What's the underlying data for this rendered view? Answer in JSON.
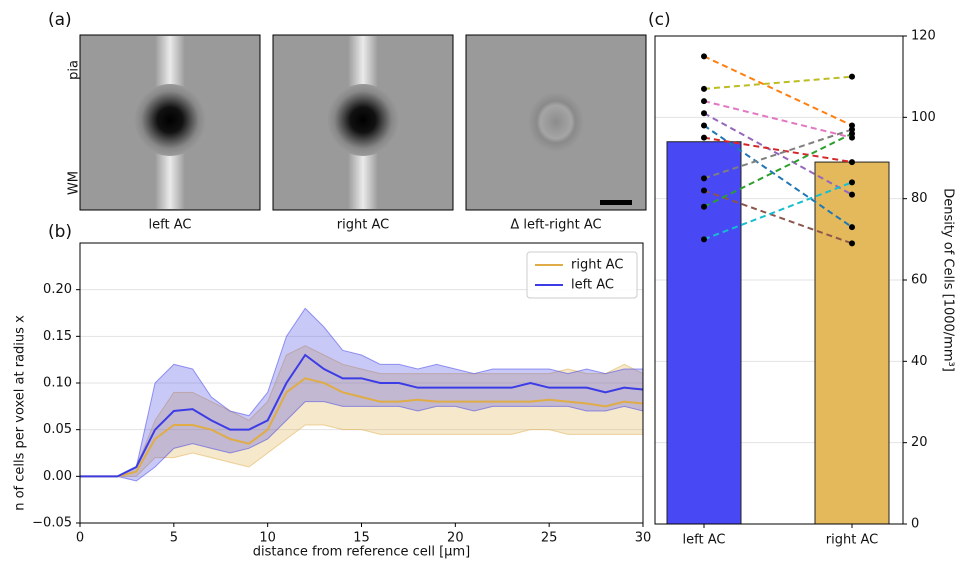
{
  "panel_a": {
    "panel_label": "(a)",
    "side_labels": [
      "pia",
      "WM"
    ],
    "image_labels": [
      "left AC",
      "right AC",
      "Δ left-right AC"
    ]
  },
  "chart_data": [
    {
      "type": "line",
      "panel_label": "(b)",
      "x_label": "distance from reference cell [μm]",
      "y_label": "n of cells per voxel at radius x",
      "x": [
        0,
        1,
        2,
        3,
        4,
        5,
        6,
        7,
        8,
        9,
        10,
        11,
        12,
        13,
        14,
        15,
        16,
        17,
        18,
        19,
        20,
        21,
        22,
        23,
        24,
        25,
        26,
        27,
        28,
        29,
        30
      ],
      "xlim": [
        0,
        30
      ],
      "xticks": [
        0,
        5,
        10,
        15,
        20,
        25,
        30
      ],
      "ylim": [
        -0.05,
        0.25
      ],
      "yticks": [
        {
          "value": -0.05,
          "label": "−0.05"
        },
        {
          "value": 0,
          "label": "0.00"
        },
        {
          "value": 0.05,
          "label": "0.05"
        },
        {
          "value": 0.1,
          "label": "0.10"
        },
        {
          "value": 0.15,
          "label": "0.15"
        },
        {
          "value": 0.2,
          "label": "0.20"
        }
      ],
      "grid": true,
      "legend": "upper right",
      "series": [
        {
          "name": "right AC",
          "color": "#e0ac45",
          "values": [
            0,
            0,
            0,
            0.005,
            0.04,
            0.055,
            0.055,
            0.05,
            0.04,
            0.035,
            0.05,
            0.09,
            0.105,
            0.1,
            0.09,
            0.085,
            0.08,
            0.08,
            0.082,
            0.08,
            0.08,
            0.08,
            0.08,
            0.08,
            0.08,
            0.082,
            0.08,
            0.078,
            0.075,
            0.08,
            0.078
          ],
          "lower": [
            0,
            0,
            0,
            0,
            0.02,
            0.02,
            0.025,
            0.02,
            0.015,
            0.01,
            0.025,
            0.04,
            0.055,
            0.055,
            0.05,
            0.05,
            0.045,
            0.045,
            0.045,
            0.045,
            0.045,
            0.045,
            0.045,
            0.045,
            0.05,
            0.05,
            0.045,
            0.045,
            0.045,
            0.045,
            0.045
          ],
          "upper": [
            0,
            0,
            0,
            0.01,
            0.06,
            0.09,
            0.09,
            0.08,
            0.07,
            0.06,
            0.08,
            0.13,
            0.14,
            0.13,
            0.12,
            0.115,
            0.11,
            0.11,
            0.11,
            0.11,
            0.11,
            0.11,
            0.11,
            0.11,
            0.11,
            0.11,
            0.115,
            0.11,
            0.11,
            0.12,
            0.11
          ]
        },
        {
          "name": "left AC",
          "color": "#3c3ce6",
          "values": [
            0,
            0,
            0,
            0.01,
            0.05,
            0.07,
            0.072,
            0.06,
            0.05,
            0.05,
            0.06,
            0.1,
            0.13,
            0.115,
            0.105,
            0.105,
            0.1,
            0.1,
            0.095,
            0.095,
            0.095,
            0.095,
            0.095,
            0.095,
            0.1,
            0.095,
            0.095,
            0.095,
            0.09,
            0.095,
            0.093
          ],
          "lower": [
            0,
            0,
            0,
            -0.005,
            0.01,
            0.03,
            0.035,
            0.03,
            0.025,
            0.03,
            0.04,
            0.06,
            0.08,
            0.08,
            0.075,
            0.075,
            0.075,
            0.075,
            0.07,
            0.075,
            0.075,
            0.07,
            0.075,
            0.075,
            0.075,
            0.075,
            0.075,
            0.07,
            0.07,
            0.075,
            0.07
          ],
          "upper": [
            0,
            0,
            0,
            0.01,
            0.1,
            0.12,
            0.115,
            0.085,
            0.07,
            0.065,
            0.09,
            0.15,
            0.18,
            0.16,
            0.135,
            0.13,
            0.12,
            0.12,
            0.115,
            0.12,
            0.115,
            0.11,
            0.115,
            0.115,
            0.115,
            0.115,
            0.11,
            0.115,
            0.11,
            0.115,
            0.115
          ]
        }
      ]
    },
    {
      "type": "bar",
      "panel_label": "(c)",
      "y_label": "Density of Cells [1000/mm³]",
      "categories": [
        "left AC",
        "right AC"
      ],
      "values": [
        94,
        89
      ],
      "colors": [
        "#4848f5",
        "#e3b95c"
      ],
      "ylim": [
        0,
        120
      ],
      "yticks": [
        0,
        20,
        40,
        60,
        80,
        100,
        120
      ],
      "grid": true,
      "pairs": [
        {
          "color": "#ff7f0e",
          "values": [
            115,
            98
          ]
        },
        {
          "color": "#bcbd22",
          "values": [
            107,
            110
          ]
        },
        {
          "color": "#e377c2",
          "values": [
            104,
            95
          ]
        },
        {
          "color": "#9467bd",
          "values": [
            101,
            81
          ]
        },
        {
          "color": "#1f77b4",
          "values": [
            98,
            73
          ]
        },
        {
          "color": "#d62728",
          "values": [
            95,
            89
          ]
        },
        {
          "color": "#7f7f7f",
          "values": [
            85,
            97
          ]
        },
        {
          "color": "#8c564b",
          "values": [
            82,
            69
          ]
        },
        {
          "color": "#2ca02c",
          "values": [
            78,
            96
          ]
        },
        {
          "color": "#17becf",
          "values": [
            70,
            84
          ]
        }
      ]
    }
  ]
}
